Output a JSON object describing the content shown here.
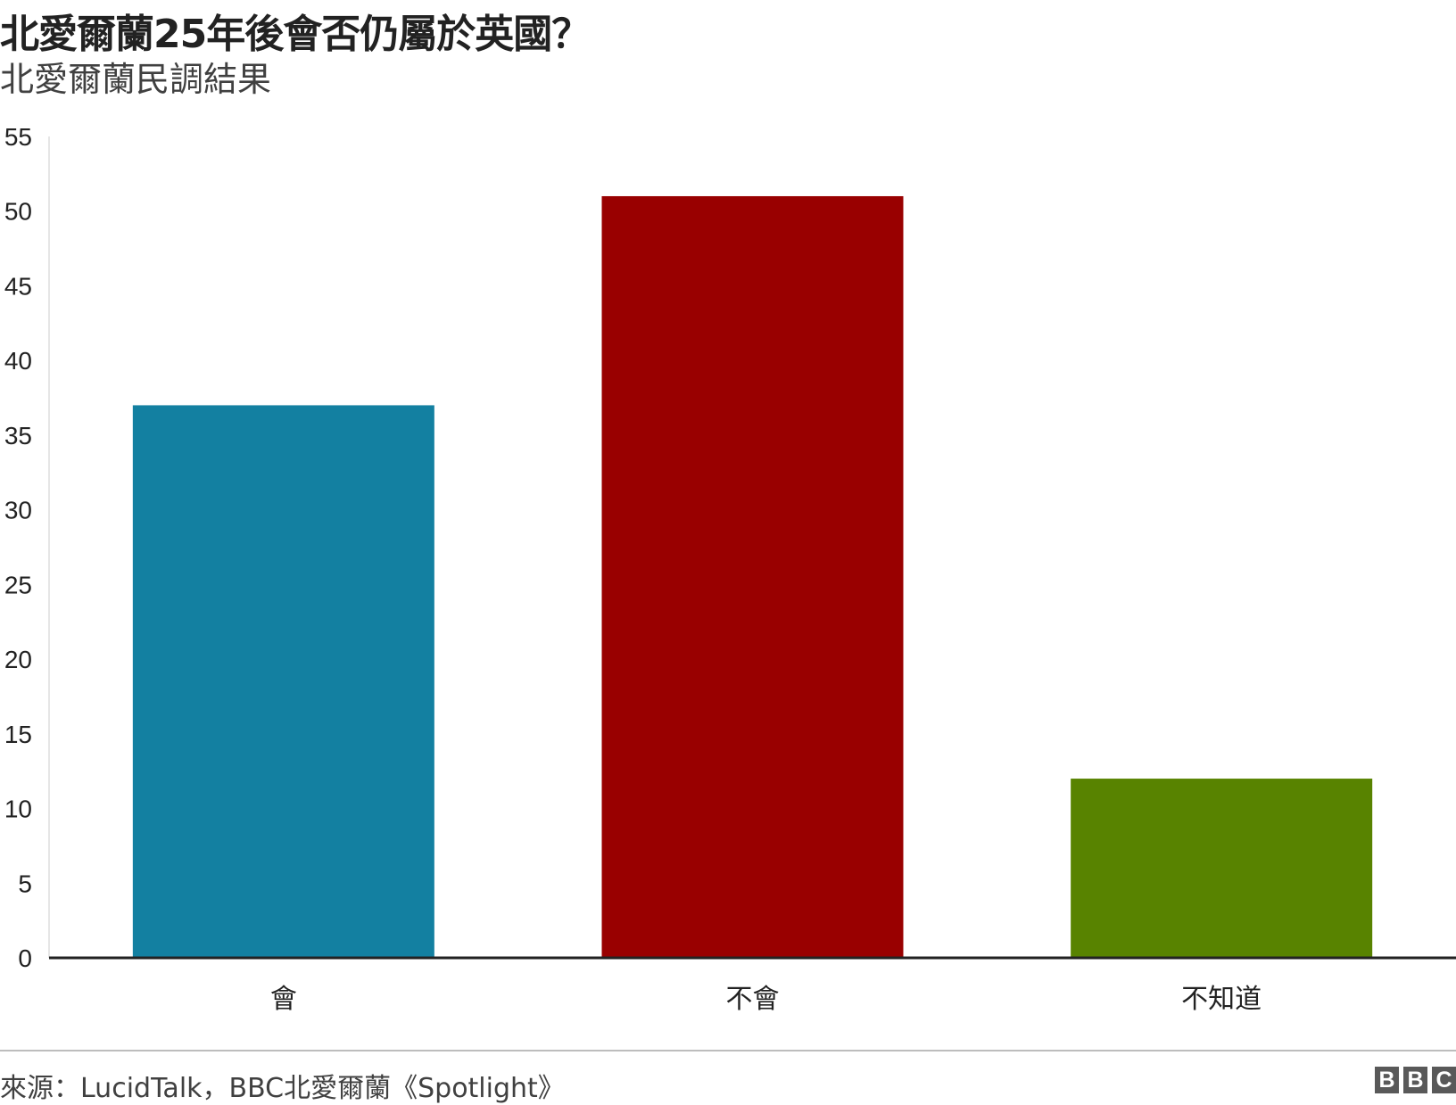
{
  "header": {
    "title": "北愛爾蘭25年後會否仍屬於英國？",
    "subtitle": "北愛爾蘭民調結果"
  },
  "chart_data": {
    "type": "bar",
    "categories": [
      "會",
      "不會",
      "不知道"
    ],
    "values": [
      37,
      51,
      12
    ],
    "colors": [
      "#1380a1",
      "#990000",
      "#588300"
    ],
    "ylim": [
      0,
      55
    ],
    "yticks": [
      0,
      5,
      10,
      15,
      20,
      25,
      30,
      35,
      40,
      45,
      50,
      55
    ],
    "xlabel": "",
    "ylabel": "",
    "grid": false,
    "legend": "none"
  },
  "footer": {
    "source": "來源：LucidTalk，BBC北愛爾蘭《Spotlight》",
    "logo": [
      "B",
      "B",
      "C"
    ]
  }
}
